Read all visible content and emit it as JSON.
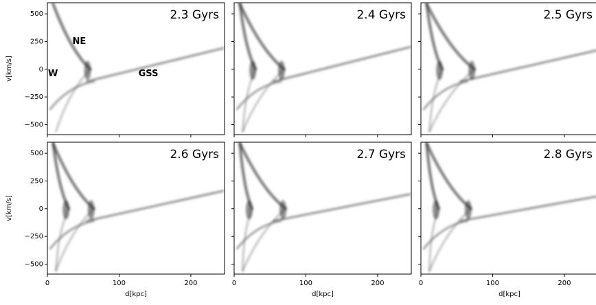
{
  "chart_data": {
    "type": "density",
    "xlabel": "d[kpc]",
    "ylabel": "v[km/s]",
    "xlim": [
      0,
      247
    ],
    "ylim": [
      -590,
      600
    ],
    "xticks": [
      0,
      100,
      200
    ],
    "yticks": [
      {
        "value": -500,
        "label": "−500"
      },
      {
        "value": -250,
        "label": "−250"
      },
      0,
      250,
      500
    ],
    "panels": [
      {
        "title": "2.3 Gyrs",
        "annotations": [
          "NE",
          "W",
          "GSS"
        ]
      },
      {
        "title": "2.4 Gyrs"
      },
      {
        "title": "2.5 Gyrs"
      },
      {
        "title": "2.6 Gyrs"
      },
      {
        "title": "2.7 Gyrs"
      },
      {
        "title": "2.8 Gyrs"
      }
    ]
  }
}
